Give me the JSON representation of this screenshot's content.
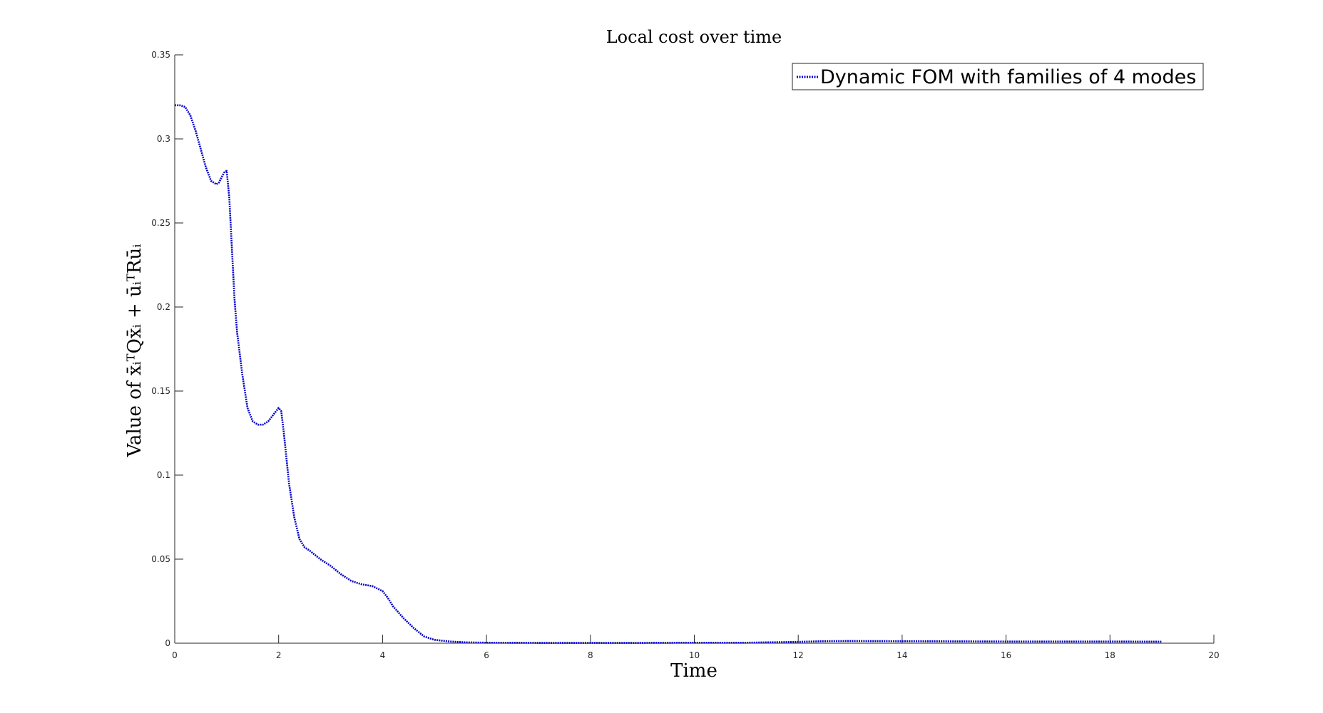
{
  "chart_data": {
    "type": "line",
    "title": "Local cost over time",
    "xlabel": "Time",
    "ylabel": "Value of x̄ᵢᵀQx̄ᵢ + ūᵢᵀRūᵢ",
    "xlim": [
      0,
      20
    ],
    "ylim": [
      0,
      0.35
    ],
    "xticks": [
      "0",
      "2",
      "4",
      "6",
      "8",
      "10",
      "12",
      "14",
      "16",
      "18",
      "20"
    ],
    "yticks": [
      "0",
      "0.05",
      "0.1",
      "0.15",
      "0.2",
      "0.25",
      "0.3",
      "0.35"
    ],
    "grid": false,
    "legend_position": "top-right",
    "colors": {
      "series": "#0000cc",
      "axis": "#262626"
    },
    "series": [
      {
        "name": "Dynamic FOM with families of 4 modes",
        "line_style": "dotted",
        "x": [
          0,
          0.1,
          0.2,
          0.3,
          0.4,
          0.5,
          0.6,
          0.7,
          0.8,
          0.85,
          0.9,
          0.95,
          1.0,
          1.05,
          1.1,
          1.15,
          1.2,
          1.3,
          1.4,
          1.5,
          1.6,
          1.7,
          1.8,
          1.9,
          2.0,
          2.05,
          2.1,
          2.15,
          2.2,
          2.3,
          2.4,
          2.5,
          2.6,
          2.8,
          3.0,
          3.2,
          3.4,
          3.6,
          3.8,
          4.0,
          4.1,
          4.2,
          4.4,
          4.6,
          4.8,
          5.0,
          5.3,
          5.6,
          6.0,
          7,
          8,
          9,
          10,
          11,
          12,
          12.5,
          13,
          14,
          15,
          16,
          17,
          18,
          19
        ],
        "y": [
          0.32,
          0.32,
          0.319,
          0.314,
          0.305,
          0.294,
          0.283,
          0.275,
          0.273,
          0.274,
          0.277,
          0.28,
          0.281,
          0.265,
          0.235,
          0.205,
          0.185,
          0.16,
          0.14,
          0.132,
          0.13,
          0.13,
          0.132,
          0.136,
          0.14,
          0.138,
          0.125,
          0.11,
          0.095,
          0.075,
          0.062,
          0.057,
          0.055,
          0.05,
          0.046,
          0.041,
          0.037,
          0.035,
          0.034,
          0.031,
          0.027,
          0.022,
          0.015,
          0.009,
          0.004,
          0.002,
          0.001,
          0.0005,
          0.0003,
          0.0002,
          0.0002,
          0.0002,
          0.0003,
          0.0003,
          0.0008,
          0.0012,
          0.0013,
          0.0012,
          0.0011,
          0.001,
          0.001,
          0.001,
          0.0009
        ]
      }
    ]
  }
}
